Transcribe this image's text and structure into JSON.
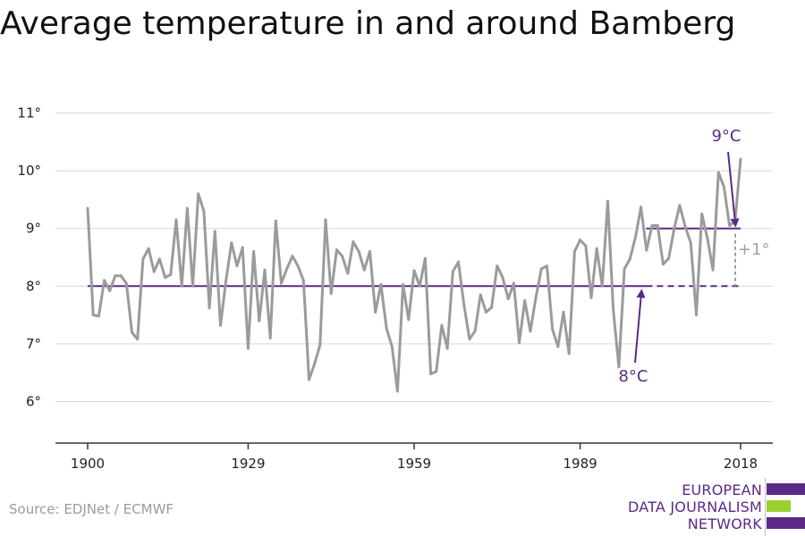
{
  "title": "Average temperature in and around Bamberg",
  "source": "Source: EDJNet / ECMWF",
  "logo": {
    "lines": [
      "EUROPEAN",
      "DATA JOURNALISM",
      "NETWORK"
    ],
    "colors": {
      "purple": "#5b2a86",
      "green": "#9bd12f"
    }
  },
  "colors": {
    "series": "#9b9b9b",
    "baseline": "#5b2a86",
    "difference": "#a0a0a0",
    "grid": "#d9d9d9",
    "axis": "#333333"
  },
  "chart_data": {
    "type": "line",
    "title": "Average temperature in and around Bamberg",
    "xlabel": "",
    "ylabel": "",
    "xlim": [
      1900,
      2018
    ],
    "ylim": [
      5.25,
      11.25
    ],
    "x_ticks": [
      1900,
      1929,
      1959,
      1989,
      2018
    ],
    "y_ticks": [
      6,
      7,
      8,
      9,
      10,
      11
    ],
    "y_tick_labels": [
      "6°",
      "7°",
      "8°",
      "9°",
      "10°",
      "11°"
    ],
    "grid": "horizontal",
    "series": [
      {
        "x": [
          1900,
          1901,
          1902,
          1903,
          1904,
          1905,
          1906,
          1907,
          1908,
          1909,
          1910,
          1911,
          1912,
          1913,
          1914,
          1915,
          1916,
          1917,
          1918,
          1919,
          1920,
          1921,
          1922,
          1923,
          1924,
          1925,
          1926,
          1927,
          1928,
          1929,
          1930,
          1931,
          1932,
          1933,
          1934,
          1935,
          1936,
          1937,
          1938,
          1939,
          1940,
          1941,
          1942,
          1943,
          1944,
          1945,
          1946,
          1947,
          1948,
          1949,
          1950,
          1951,
          1952,
          1953,
          1954,
          1955,
          1956,
          1957,
          1958,
          1959,
          1960,
          1961,
          1962,
          1963,
          1964,
          1965,
          1966,
          1967,
          1968,
          1969,
          1970,
          1971,
          1972,
          1973,
          1974,
          1975,
          1976,
          1977,
          1978,
          1979,
          1980,
          1981,
          1982,
          1983,
          1984,
          1985,
          1986,
          1987,
          1988,
          1989,
          1990,
          1991,
          1992,
          1993,
          1994,
          1995,
          1996,
          1997,
          1998,
          1999,
          2000,
          2001,
          2002,
          2003,
          2004,
          2005,
          2006,
          2007,
          2008,
          2009,
          2010,
          2011,
          2012,
          2013,
          2014,
          2015,
          2016,
          2017,
          2018
        ],
        "values": [
          9.35,
          7.5,
          7.48,
          8.1,
          7.92,
          8.18,
          8.18,
          8.05,
          7.2,
          7.08,
          8.47,
          8.65,
          8.25,
          8.47,
          8.15,
          8.2,
          9.15,
          8.0,
          9.35,
          8.0,
          9.6,
          9.3,
          7.62,
          8.95,
          7.32,
          8.1,
          8.75,
          8.35,
          8.67,
          6.92,
          8.6,
          7.4,
          8.28,
          7.1,
          9.13,
          8.05,
          8.3,
          8.52,
          8.35,
          8.1,
          6.38,
          6.65,
          6.98,
          9.15,
          7.87,
          8.63,
          8.52,
          8.22,
          8.77,
          8.6,
          8.28,
          8.6,
          7.55,
          8.03,
          7.27,
          6.95,
          6.18,
          8.03,
          7.42,
          8.27,
          8.0,
          8.48,
          6.48,
          6.52,
          7.32,
          6.92,
          8.25,
          8.42,
          7.68,
          7.08,
          7.22,
          7.85,
          7.55,
          7.63,
          8.35,
          8.15,
          7.78,
          8.05,
          7.02,
          7.75,
          7.22,
          7.8,
          8.3,
          8.35,
          7.25,
          6.95,
          7.55,
          6.83,
          8.6,
          8.8,
          8.7,
          7.8,
          8.65,
          8.0,
          9.47,
          7.58,
          6.6,
          8.3,
          8.47,
          8.85,
          9.37,
          8.62,
          9.05,
          9.05,
          8.38,
          8.48,
          9.0,
          9.4,
          9.03,
          8.75,
          7.5,
          9.25,
          8.83,
          8.28,
          9.97,
          9.72,
          9.05,
          9.12,
          10.2
        ]
      }
    ],
    "annotations": [
      {
        "label": "8°C",
        "baseline_value": 8,
        "from_year": 1900,
        "to_year": 1999,
        "dashed_to_year": 2018
      },
      {
        "label": "9°C",
        "baseline_value": 9,
        "from_year": 1999,
        "to_year": 2018
      },
      {
        "label": "+1°",
        "from_value": 8,
        "to_value": 9,
        "at_year": 2018
      }
    ]
  }
}
